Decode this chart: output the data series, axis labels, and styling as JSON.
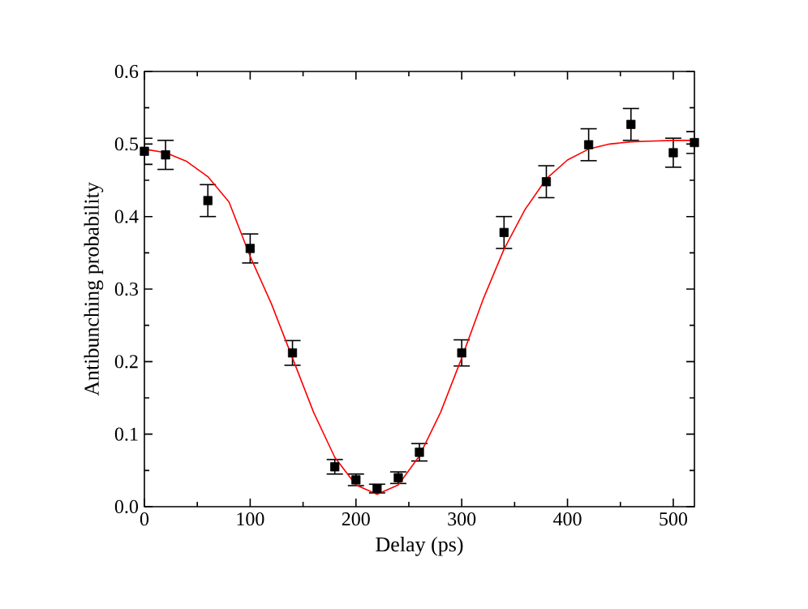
{
  "chart_data": {
    "type": "scatter",
    "xlabel": "Delay (ps)",
    "ylabel": "Antibunching probability",
    "xlim": [
      0,
      520
    ],
    "ylim": [
      0,
      0.6
    ],
    "xticks": [
      0,
      100,
      200,
      300,
      400,
      500
    ],
    "yticks": [
      {
        "value": 0,
        "label": "0.0"
      },
      0.1,
      0.2,
      0.3,
      0.4,
      0.5,
      0.6
    ],
    "marker": "square",
    "grid": false,
    "series": [
      {
        "color": "#000000",
        "x": [
          0,
          20,
          60,
          100,
          140,
          180,
          200,
          220,
          240,
          260,
          300,
          340,
          380,
          420,
          460,
          500,
          520
        ],
        "values": [
          0.49,
          0.485,
          0.422,
          0.356,
          0.212,
          0.055,
          0.037,
          0.025,
          0.04,
          0.075,
          0.212,
          0.378,
          0.448,
          0.499,
          0.527,
          0.488,
          0.502
        ],
        "errors": [
          0.018,
          0.02,
          0.022,
          0.02,
          0.017,
          0.01,
          0.008,
          0.006,
          0.008,
          0.012,
          0.018,
          0.022,
          0.022,
          0.022,
          0.022,
          0.02,
          0.015
        ]
      },
      {
        "type": "line",
        "color": "#ff0000",
        "marker": "none",
        "line_style": "solid",
        "x": [
          0,
          20,
          40,
          60,
          80,
          100,
          120,
          140,
          160,
          180,
          200,
          220,
          240,
          260,
          280,
          300,
          320,
          340,
          360,
          380,
          400,
          420,
          440,
          460,
          480,
          500,
          520
        ],
        "values": [
          0.493,
          0.488,
          0.476,
          0.455,
          0.42,
          0.345,
          0.28,
          0.205,
          0.13,
          0.068,
          0.03,
          0.017,
          0.03,
          0.07,
          0.13,
          0.205,
          0.285,
          0.355,
          0.41,
          0.452,
          0.478,
          0.493,
          0.5,
          0.503,
          0.504,
          0.505,
          0.505
        ]
      }
    ]
  }
}
